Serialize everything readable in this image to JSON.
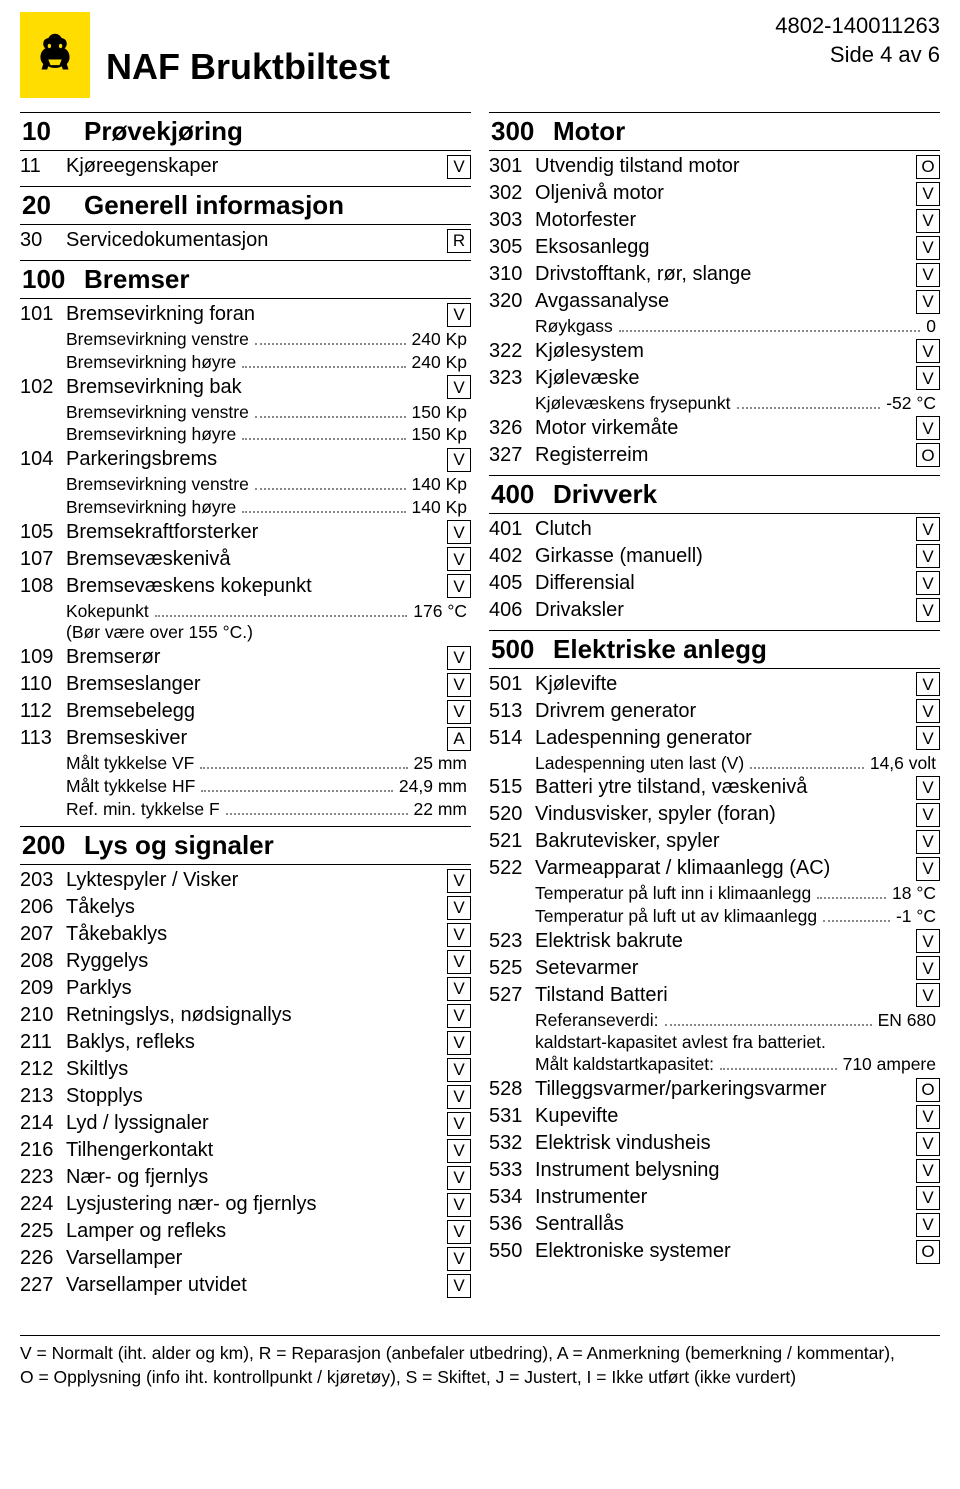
{
  "header": {
    "title": "NAF Bruktbiltest",
    "doc_id": "4802-140011263",
    "page": "Side 4 av 6"
  },
  "colors": {
    "logo_bg": "#ffdd00",
    "logo_fg": "#000000",
    "text": "#000000",
    "dots": "#888888"
  },
  "left_sections": [
    {
      "num": "10",
      "title": "Prøvekjøring",
      "items": [
        {
          "num": "11",
          "label": "Kjøreegenskaper",
          "badge": "V"
        }
      ]
    },
    {
      "num": "20",
      "title": "Generell informasjon",
      "items": [
        {
          "num": "30",
          "label": "Servicedokumentasjon",
          "badge": "R"
        }
      ]
    },
    {
      "num": "100",
      "title": "Bremser",
      "items": [
        {
          "num": "101",
          "label": "Bremsevirkning foran",
          "badge": "V",
          "subs": [
            {
              "label": "Bremsevirkning venstre",
              "value": "240 Kp"
            },
            {
              "label": "Bremsevirkning høyre",
              "value": "240 Kp"
            }
          ]
        },
        {
          "num": "102",
          "label": "Bremsevirkning bak",
          "badge": "V",
          "subs": [
            {
              "label": "Bremsevirkning venstre",
              "value": "150 Kp"
            },
            {
              "label": "Bremsevirkning høyre",
              "value": "150 Kp"
            }
          ]
        },
        {
          "num": "104",
          "label": "Parkeringsbrems",
          "badge": "V",
          "subs": [
            {
              "label": "Bremsevirkning venstre",
              "value": "140 Kp"
            },
            {
              "label": "Bremsevirkning høyre",
              "value": "140 Kp"
            }
          ]
        },
        {
          "num": "105",
          "label": "Bremsekraftforsterker",
          "badge": "V"
        },
        {
          "num": "107",
          "label": "Bremsevæskenivå",
          "badge": "V"
        },
        {
          "num": "108",
          "label": "Bremsevæskens kokepunkt",
          "badge": "V",
          "subs": [
            {
              "label": "Kokepunkt",
              "value": "176 °C"
            }
          ],
          "notes": [
            "(Bør være over 155 °C.)"
          ]
        },
        {
          "num": "109",
          "label": "Bremserør",
          "badge": "V"
        },
        {
          "num": "110",
          "label": "Bremseslanger",
          "badge": "V"
        },
        {
          "num": "112",
          "label": "Bremsebelegg",
          "badge": "V"
        },
        {
          "num": "113",
          "label": "Bremseskiver",
          "badge": "A",
          "subs": [
            {
              "label": "Målt tykkelse VF",
              "value": "25 mm"
            },
            {
              "label": "Målt tykkelse HF",
              "value": "24,9 mm"
            },
            {
              "label": "Ref. min. tykkelse F",
              "value": "22 mm"
            }
          ]
        }
      ]
    },
    {
      "num": "200",
      "title": "Lys og signaler",
      "items": [
        {
          "num": "203",
          "label": "Lyktespyler / Visker",
          "badge": "V"
        },
        {
          "num": "206",
          "label": "Tåkelys",
          "badge": "V"
        },
        {
          "num": "207",
          "label": "Tåkebaklys",
          "badge": "V"
        },
        {
          "num": "208",
          "label": "Ryggelys",
          "badge": "V"
        },
        {
          "num": "209",
          "label": "Parklys",
          "badge": "V"
        },
        {
          "num": "210",
          "label": "Retningslys,  nødsignallys",
          "badge": "V"
        },
        {
          "num": "211",
          "label": "Baklys, refleks",
          "badge": "V"
        },
        {
          "num": "212",
          "label": "Skiltlys",
          "badge": "V"
        },
        {
          "num": "213",
          "label": "Stopplys",
          "badge": "V"
        },
        {
          "num": "214",
          "label": "Lyd / lyssignaler",
          "badge": "V"
        },
        {
          "num": "216",
          "label": "Tilhengerkontakt",
          "badge": "V"
        },
        {
          "num": "223",
          "label": "Nær- og fjernlys",
          "badge": "V"
        },
        {
          "num": "224",
          "label": "Lysjustering nær- og fjernlys",
          "badge": "V"
        },
        {
          "num": "225",
          "label": "Lamper og refleks",
          "badge": "V"
        },
        {
          "num": "226",
          "label": "Varsellamper",
          "badge": "V"
        },
        {
          "num": "227",
          "label": "Varsellamper utvidet",
          "badge": "V"
        }
      ]
    }
  ],
  "right_sections": [
    {
      "num": "300",
      "title": "Motor",
      "items": [
        {
          "num": "301",
          "label": "Utvendig tilstand motor",
          "badge": "O"
        },
        {
          "num": "302",
          "label": "Oljenivå motor",
          "badge": "V"
        },
        {
          "num": "303",
          "label": "Motorfester",
          "badge": "V"
        },
        {
          "num": "305",
          "label": "Eksosanlegg",
          "badge": "V"
        },
        {
          "num": "310",
          "label": "Drivstofftank, rør, slange",
          "badge": "V"
        },
        {
          "num": "320",
          "label": "Avgassanalyse",
          "badge": "V",
          "subs": [
            {
              "label": "Røykgass",
              "value": "0"
            }
          ]
        },
        {
          "num": "322",
          "label": "Kjølesystem",
          "badge": "V"
        },
        {
          "num": "323",
          "label": "Kjølevæske",
          "badge": "V",
          "subs": [
            {
              "label": "Kjølevæskens frysepunkt",
              "value": "-52 °C"
            }
          ]
        },
        {
          "num": "326",
          "label": "Motor virkemåte",
          "badge": "V"
        },
        {
          "num": "327",
          "label": "Registerreim",
          "badge": "O"
        }
      ]
    },
    {
      "num": "400",
      "title": "Drivverk",
      "items": [
        {
          "num": "401",
          "label": "Clutch",
          "badge": "V"
        },
        {
          "num": "402",
          "label": "Girkasse (manuell)",
          "badge": "V"
        },
        {
          "num": "405",
          "label": "Differensial",
          "badge": "V"
        },
        {
          "num": "406",
          "label": "Drivaksler",
          "badge": "V"
        }
      ]
    },
    {
      "num": "500",
      "title": "Elektriske anlegg",
      "items": [
        {
          "num": "501",
          "label": "Kjølevifte",
          "badge": "V"
        },
        {
          "num": "513",
          "label": "Drivrem generator",
          "badge": "V"
        },
        {
          "num": "514",
          "label": "Ladespenning generator",
          "badge": "V",
          "subs": [
            {
              "label": "Ladespenning uten last (V)",
              "value": "14,6 volt"
            }
          ]
        },
        {
          "num": "515",
          "label": "Batteri ytre tilstand, væskenivå",
          "badge": "V"
        },
        {
          "num": "520",
          "label": "Vindusvisker, spyler (foran)",
          "badge": "V"
        },
        {
          "num": "521",
          "label": "Bakrutevisker, spyler",
          "badge": "V"
        },
        {
          "num": "522",
          "label": "Varmeapparat / klimaanlegg (AC)",
          "badge": "V",
          "subs": [
            {
              "label": "Temperatur på luft inn i klimaanlegg",
              "value": "18 °C"
            },
            {
              "label": "Temperatur på luft ut av klimaanlegg",
              "value": "-1 °C"
            }
          ]
        },
        {
          "num": "523",
          "label": "Elektrisk bakrute",
          "badge": "V"
        },
        {
          "num": "525",
          "label": "Setevarmer",
          "badge": "V"
        },
        {
          "num": "527",
          "label": "Tilstand Batteri",
          "badge": "V",
          "subs": [
            {
              "label": "Referanseverdi:",
              "value": "EN 680"
            }
          ],
          "notes": [
            "kaldstart-kapasitet avlest fra batteriet."
          ],
          "subs_after": [
            {
              "label": "Målt kaldstartkapasitet:",
              "value": "710 ampere"
            }
          ]
        },
        {
          "num": "528",
          "label": "Tilleggsvarmer/parkeringsvarmer",
          "badge": "O"
        },
        {
          "num": "531",
          "label": "Kupevifte",
          "badge": "V"
        },
        {
          "num": "532",
          "label": "Elektrisk vindusheis",
          "badge": "V"
        },
        {
          "num": "533",
          "label": "Instrument belysning",
          "badge": "V"
        },
        {
          "num": "534",
          "label": "Instrumenter",
          "badge": "V"
        },
        {
          "num": "536",
          "label": "Sentrallås",
          "badge": "V"
        },
        {
          "num": "550",
          "label": "Elektroniske systemer",
          "badge": "O"
        }
      ]
    }
  ],
  "footer": {
    "line1": "V = Normalt (iht. alder og km), R = Reparasjon (anbefaler utbedring), A = Anmerkning (bemerkning / kommentar),",
    "line2": "O = Opplysning (info iht. kontrollpunkt / kjøretøy), S = Skiftet, J = Justert, I = Ikke utført (ikke vurdert)"
  }
}
